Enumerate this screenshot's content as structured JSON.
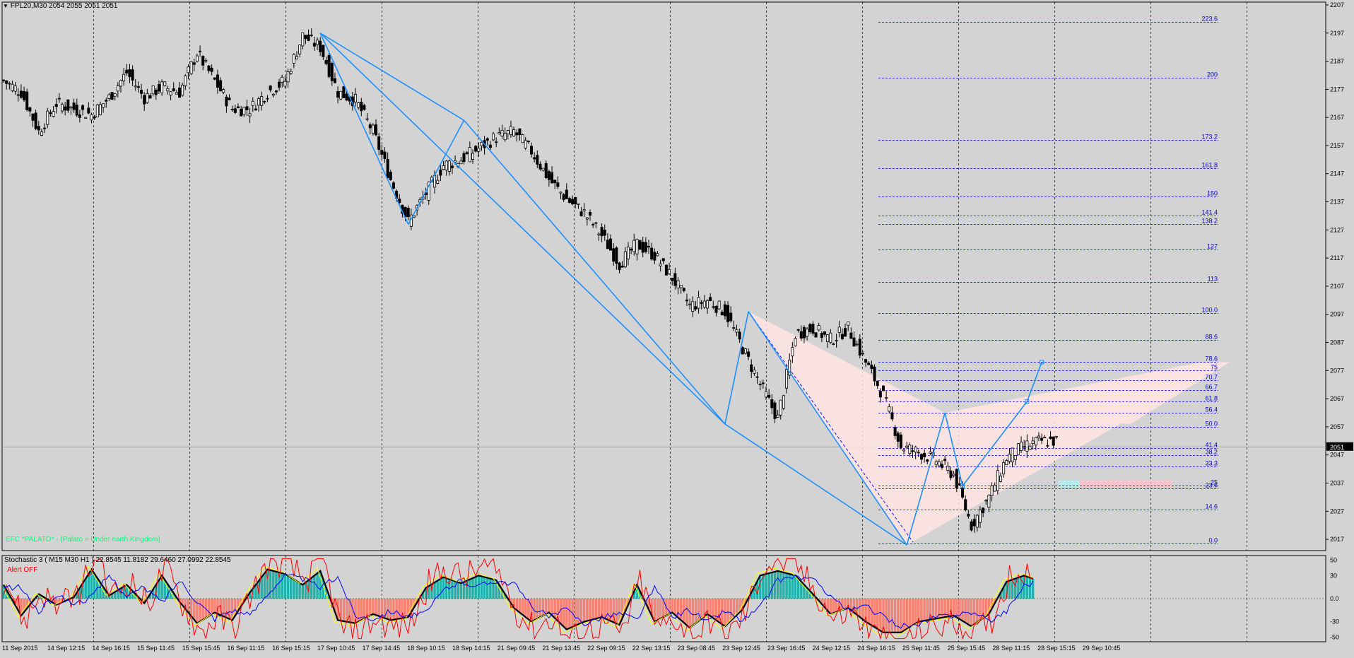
{
  "header": {
    "symbol_line": "FPL20,M30  2054 2055 2051 2051",
    "indicator_caption": "EFC *PALATO* - (Palato = Under earth Kingdom)",
    "stoch_caption": "Stochastic 3 ( M15  M30  H1 ) 22.8545 11.8182 29.6460 27.0992 22.8545",
    "alert_caption": "Alert OFF"
  },
  "colors": {
    "background": "#d3d3d3",
    "grid": "#000000",
    "pattern_line": "#1e90ff",
    "fib_line": "#0000ff",
    "fib_label": "#0000cd",
    "bull_candle": "#ffffff",
    "bear_candle": "#000000",
    "zone_pink": "#ffe4e1",
    "stoch_pos": "#20b2aa",
    "stoch_neg": "#fa8072",
    "caption_green": "#00ff7f",
    "caption_red": "#ff0000",
    "price_box": "#000000"
  },
  "chart_data": [
    {
      "type": "candlestick",
      "symbol": "FPL20",
      "timeframe": "M30",
      "ylim": [
        2013,
        2208
      ],
      "price_ticks": [
        2207,
        2197,
        2187,
        2177,
        2167,
        2157,
        2147,
        2137,
        2127,
        2117,
        2107,
        2097,
        2087,
        2077,
        2067,
        2057,
        2047,
        2037,
        2027,
        2017
      ],
      "current_price": "2051",
      "time_labels": [
        "11 Sep 2015",
        "14 Sep 12:15",
        "14 Sep 16:15",
        "15 Sep 11:45",
        "15 Sep 15:45",
        "16 Sep 11:15",
        "16 Sep 15:15",
        "17 Sep 10:45",
        "17 Sep 14:45",
        "18 Sep 10:15",
        "18 Sep 14:15",
        "21 Sep 09:45",
        "21 Sep 13:45",
        "22 Sep 09:15",
        "22 Sep 13:15",
        "23 Sep 08:45",
        "23 Sep 12:45",
        "23 Sep 16:45",
        "24 Sep 12:15",
        "24 Sep 16:15",
        "25 Sep 11:45",
        "25 Sep 15:45",
        "28 Sep 11:15",
        "28 Sep 15:15",
        "29 Sep 10:45"
      ],
      "close_path": [
        [
          0,
          2180
        ],
        [
          6,
          2176
        ],
        [
          12,
          2162
        ],
        [
          18,
          2172
        ],
        [
          24,
          2170
        ],
        [
          30,
          2168
        ],
        [
          36,
          2174
        ],
        [
          42,
          2183
        ],
        [
          48,
          2174
        ],
        [
          54,
          2178
        ],
        [
          60,
          2176
        ],
        [
          66,
          2190
        ],
        [
          72,
          2180
        ],
        [
          78,
          2170
        ],
        [
          84,
          2170
        ],
        [
          90,
          2176
        ],
        [
          96,
          2180
        ],
        [
          102,
          2196
        ],
        [
          108,
          2192
        ],
        [
          114,
          2176
        ],
        [
          120,
          2173
        ],
        [
          126,
          2162
        ],
        [
          132,
          2145
        ],
        [
          138,
          2130
        ],
        [
          144,
          2140
        ],
        [
          150,
          2150
        ],
        [
          156,
          2152
        ],
        [
          162,
          2156
        ],
        [
          168,
          2160
        ],
        [
          174,
          2162
        ],
        [
          180,
          2155
        ],
        [
          186,
          2145
        ],
        [
          192,
          2138
        ],
        [
          198,
          2133
        ],
        [
          204,
          2125
        ],
        [
          210,
          2115
        ],
        [
          216,
          2122
        ],
        [
          222,
          2118
        ],
        [
          228,
          2110
        ],
        [
          234,
          2100
        ],
        [
          240,
          2102
        ],
        [
          246,
          2098
        ],
        [
          252,
          2085
        ],
        [
          258,
          2072
        ],
        [
          264,
          2060
        ],
        [
          270,
          2090
        ],
        [
          276,
          2092
        ],
        [
          282,
          2088
        ],
        [
          288,
          2092
        ],
        [
          294,
          2080
        ],
        [
          300,
          2068
        ],
        [
          306,
          2050
        ],
        [
          312,
          2048
        ],
        [
          318,
          2045
        ],
        [
          324,
          2040
        ],
        [
          330,
          2022
        ],
        [
          336,
          2032
        ],
        [
          342,
          2046
        ],
        [
          348,
          2050
        ],
        [
          354,
          2052
        ]
      ],
      "fib_levels": [
        {
          "label": "223.6",
          "price": 2201
        },
        {
          "label": "200",
          "price": 2181
        },
        {
          "label": "173.2",
          "price": 2159
        },
        {
          "label": "161.8",
          "price": 2149
        },
        {
          "label": "150",
          "price": 2139
        },
        {
          "label": "141.4",
          "price": 2132
        },
        {
          "label": "138.2",
          "price": 2129
        },
        {
          "label": "127",
          "price": 2120
        },
        {
          "label": "113",
          "price": 2108.5
        },
        {
          "label": "100.0",
          "price": 2097.5
        },
        {
          "label": "88.6",
          "price": 2088
        },
        {
          "label": "78.6",
          "price": 2080
        },
        {
          "label": "75",
          "price": 2077
        },
        {
          "label": "70.7",
          "price": 2073.5
        },
        {
          "label": "66.7",
          "price": 2070
        },
        {
          "label": "61.8",
          "price": 2066
        },
        {
          "label": "56.4",
          "price": 2062
        },
        {
          "label": "50.0",
          "price": 2057
        },
        {
          "label": "41.4",
          "price": 2049.5
        },
        {
          "label": "38.2",
          "price": 2047
        },
        {
          "label": "33.3",
          "price": 2043
        },
        {
          "label": "25",
          "price": 2036
        },
        {
          "label": "23.6",
          "price": 2035
        },
        {
          "label": "14.6",
          "price": 2027.5
        },
        {
          "label": "0.0",
          "price": 2015.5
        }
      ],
      "pattern_points": [
        [
          108,
          2197
        ],
        [
          138,
          2129
        ],
        [
          157,
          2166
        ],
        [
          246,
          2058
        ],
        [
          254,
          2098
        ],
        [
          308,
          2015
        ],
        [
          321,
          2062
        ],
        [
          327,
          2036
        ],
        [
          349,
          2066
        ],
        [
          354,
          2080
        ]
      ]
    },
    {
      "type": "line",
      "name": "Stochastic 3 ( M15  M30  H1 )",
      "ylim": [
        -56,
        56
      ],
      "y_ticks": [
        "50",
        "30",
        "0.0",
        "-30",
        "-50"
      ],
      "values": [
        22.8545,
        11.8182,
        29.646,
        27.0992,
        22.8545
      ],
      "histogram_path": [
        [
          0,
          18
        ],
        [
          6,
          -22
        ],
        [
          12,
          6
        ],
        [
          18,
          -8
        ],
        [
          24,
          2
        ],
        [
          30,
          38
        ],
        [
          36,
          4
        ],
        [
          42,
          18
        ],
        [
          48,
          -6
        ],
        [
          54,
          30
        ],
        [
          60,
          -4
        ],
        [
          66,
          -32
        ],
        [
          72,
          -18
        ],
        [
          78,
          -28
        ],
        [
          84,
          8
        ],
        [
          90,
          38
        ],
        [
          96,
          32
        ],
        [
          102,
          18
        ],
        [
          108,
          36
        ],
        [
          114,
          -28
        ],
        [
          120,
          -32
        ],
        [
          126,
          -20
        ],
        [
          132,
          -28
        ],
        [
          138,
          -24
        ],
        [
          144,
          14
        ],
        [
          150,
          28
        ],
        [
          156,
          20
        ],
        [
          162,
          30
        ],
        [
          168,
          24
        ],
        [
          174,
          -12
        ],
        [
          180,
          -30
        ],
        [
          186,
          -18
        ],
        [
          192,
          -40
        ],
        [
          198,
          -30
        ],
        [
          204,
          -24
        ],
        [
          210,
          -34
        ],
        [
          216,
          18
        ],
        [
          222,
          -30
        ],
        [
          228,
          -18
        ],
        [
          234,
          -38
        ],
        [
          240,
          -20
        ],
        [
          246,
          -36
        ],
        [
          252,
          -14
        ],
        [
          258,
          30
        ],
        [
          264,
          36
        ],
        [
          270,
          30
        ],
        [
          276,
          6
        ],
        [
          282,
          -20
        ],
        [
          288,
          -12
        ],
        [
          294,
          -30
        ],
        [
          300,
          -44
        ],
        [
          306,
          -44
        ],
        [
          312,
          -30
        ],
        [
          318,
          -26
        ],
        [
          324,
          -22
        ],
        [
          330,
          -36
        ],
        [
          336,
          -20
        ],
        [
          342,
          22
        ],
        [
          348,
          30
        ],
        [
          354,
          22
        ]
      ]
    }
  ]
}
